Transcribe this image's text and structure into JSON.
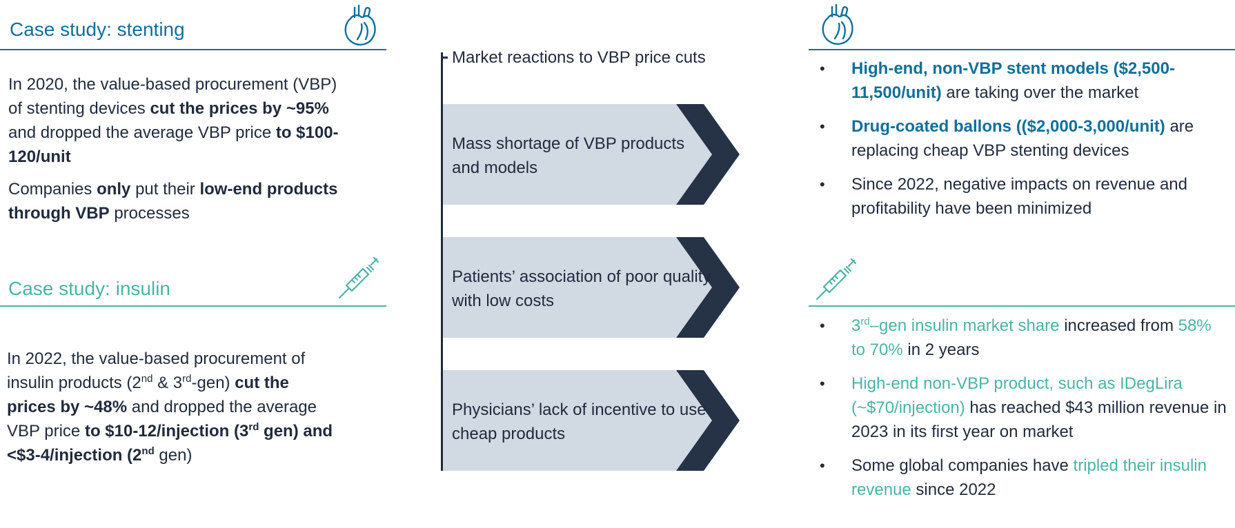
{
  "left": {
    "stenting": {
      "title": "Case study: stenting",
      "p1": [
        "In 2020, the value-based procurement (VBP) of stenting devices ",
        "cut the prices by ~95%",
        " and dropped the average VBP price ",
        "to $100-120/unit"
      ],
      "p2": [
        "Companies ",
        "only",
        " put their ",
        "low-end products through VBP",
        " processes"
      ]
    },
    "insulin": {
      "title": "Case study: insulin",
      "p1": [
        "In 2022, the value-based procurement of insulin products (2",
        "nd",
        " & 3",
        "rd",
        "-gen) ",
        "cut the prices by ~48%",
        " and dropped the average VBP price ",
        "to $10-12/injection (3",
        "rd",
        " gen) and <$3-4/injection (2",
        "nd",
        " gen)"
      ]
    }
  },
  "middle": {
    "header": "Market reactions to VBP price cuts",
    "reactions": [
      "Mass shortage of VBP products and models",
      "Patients’ association of poor quality with low costs",
      "Physicians’ lack of incentive to use cheap products"
    ]
  },
  "right": {
    "stenting_bullets": [
      [
        "High-end, non-VBP stent models ($2,500-11,500/unit)",
        " are taking over the market"
      ],
      [
        "Drug-coated ballons (($2,000-3,000/unit)",
        " are replacing cheap VBP stenting devices"
      ],
      [
        "",
        "Since 2022, negative impacts on revenue and profitability have been minimized"
      ]
    ],
    "insulin_bullets": [
      [
        "3",
        "rd",
        "–gen insulin market share",
        " increased from ",
        "58% to 70%",
        " in 2 years"
      ],
      [
        "High-end non-VBP product, such as IDegLira (~$70/injection)",
        " has reached $43 million revenue in 2023 in its first year on market"
      ],
      [
        "Some global companies have ",
        "tripled their insulin revenue",
        " since 2022"
      ]
    ]
  },
  "icons": [
    "heart-icon",
    "syringe-icon"
  ],
  "colors": {
    "blue": "#0f6f9a",
    "teal": "#4bb3a6",
    "dark": "#1f2a3c",
    "chevron_fill": "#d1d9e3"
  }
}
